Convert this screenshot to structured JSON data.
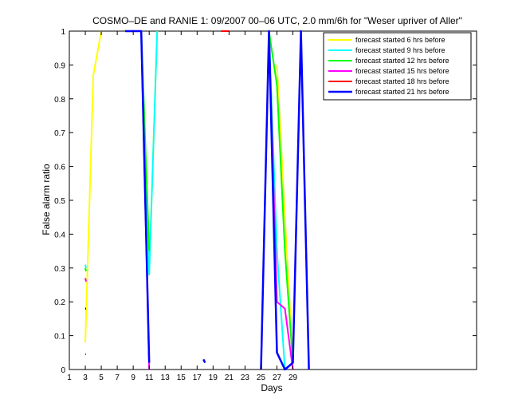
{
  "chart_data": {
    "type": "line",
    "title": "COSMO–DE and RANIE 1: 09/2007 00–06 UTC, 2.0 mm/6h for \"Weser upriver of Aller\"",
    "xlabel": "Days",
    "ylabel": "False alarm ratio",
    "xlim": [
      1,
      52
    ],
    "ylim": [
      0,
      1
    ],
    "x_ticks": [
      1,
      3,
      5,
      7,
      9,
      11,
      13,
      15,
      17,
      19,
      21,
      23,
      25,
      27,
      29
    ],
    "y_ticks": [
      0,
      0.1,
      0.2,
      0.3,
      0.4,
      0.5,
      0.6,
      0.7,
      0.8,
      0.9,
      1
    ],
    "y_tick_labels": [
      "0",
      "0.1",
      "0.2",
      "0.3",
      "0.4",
      "0.5",
      "0.6",
      "0.7",
      "0.8",
      "0.9",
      "1"
    ],
    "grid": false,
    "legend_position": "top-right",
    "series": [
      {
        "name": "forecast started 6 hrs before",
        "color": "#ffff00",
        "segments": [
          [
            [
              3,
              0.08
            ],
            [
              4,
              0.87
            ],
            [
              5,
              1.0
            ]
          ],
          [
            [
              11,
              0.28
            ],
            [
              12,
              1.0
            ]
          ],
          [
            [
              17.8,
              0.03
            ],
            [
              18,
              0.02
            ]
          ],
          [
            [
              27,
              0.9
            ],
            [
              28,
              0.45
            ],
            [
              29,
              0.02
            ]
          ]
        ]
      },
      {
        "name": "forecast started 9 hrs before",
        "color": "#00ffff",
        "segments": [
          [
            [
              3,
              0.31
            ],
            [
              3.1,
              0.3
            ]
          ],
          [
            [
              9.5,
              1.0
            ],
            [
              10,
              1.0
            ],
            [
              11,
              0.28
            ],
            [
              12,
              1.0
            ]
          ],
          [
            [
              17.8,
              0.03
            ],
            [
              18,
              0.02
            ]
          ],
          [
            [
              26,
              1.0
            ],
            [
              27,
              0.35
            ],
            [
              28,
              0.0
            ],
            [
              29,
              0.02
            ]
          ]
        ]
      },
      {
        "name": "forecast started 12 hrs before",
        "color": "#00ff00",
        "segments": [
          [
            [
              3,
              0.3
            ],
            [
              3.1,
              0.29
            ]
          ],
          [
            [
              10,
              1.0
            ],
            [
              11,
              0.35
            ]
          ],
          [
            [
              26,
              1.0
            ],
            [
              27,
              0.84
            ],
            [
              28,
              0.35
            ],
            [
              29,
              0.02
            ]
          ]
        ]
      },
      {
        "name": "forecast started 15 hrs before",
        "color": "#ff00ff",
        "segments": [
          [
            [
              3,
              0.27
            ],
            [
              3.1,
              0.26
            ]
          ],
          [
            [
              10,
              1.0
            ],
            [
              11,
              0.0
            ]
          ],
          [
            [
              26,
              1.0
            ],
            [
              27,
              0.2
            ],
            [
              28,
              0.18
            ],
            [
              29,
              0.0
            ]
          ]
        ]
      },
      {
        "name": "forecast started 18 hrs before",
        "color": "#ff0000",
        "segments": [
          [
            [
              3,
              0.045
            ],
            [
              3.1,
              0.045
            ]
          ],
          [
            [
              20,
              1.0
            ],
            [
              21,
              1.0
            ]
          ]
        ]
      },
      {
        "name": "forecast started 21 hrs before",
        "color": "#0000ff",
        "segments": [
          [
            [
              3,
              0.18
            ],
            [
              3.1,
              0.18
            ]
          ],
          [
            [
              8,
              1.0
            ],
            [
              10,
              1.0
            ],
            [
              11,
              0.02
            ]
          ],
          [
            [
              17.8,
              0.03
            ],
            [
              18,
              0.02
            ]
          ],
          [
            [
              25,
              0.0
            ],
            [
              26,
              1.0
            ],
            [
              27,
              0.05
            ],
            [
              28,
              0.0
            ],
            [
              29,
              0.02
            ],
            [
              30,
              1.0
            ],
            [
              31,
              0.0
            ]
          ]
        ]
      }
    ]
  }
}
